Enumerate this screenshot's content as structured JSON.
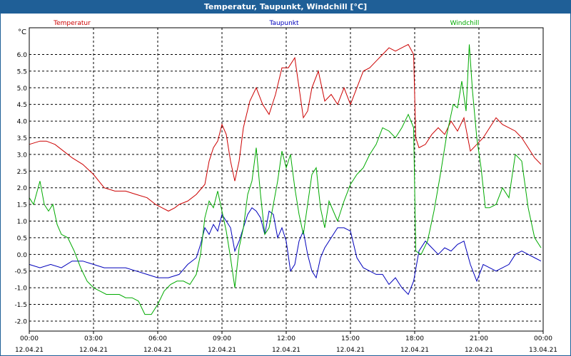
{
  "window": {
    "title": "Temperatur, Taupunkt, Windchill [°C]"
  },
  "chart_data": {
    "type": "line",
    "title": "Temperatur, Taupunkt, Windchill [°C]",
    "ylabel": "°C",
    "xlabel": "",
    "ylim": [
      -2.3,
      6.8
    ],
    "xlim": [
      0,
      24
    ],
    "grid": true,
    "legend": "top",
    "yticks": [
      "-2.0",
      "-1.5",
      "-1.0",
      "-0.5",
      "0.0",
      "0.5",
      "1.0",
      "1.5",
      "2.0",
      "2.5",
      "3.0",
      "3.5",
      "4.0",
      "4.5",
      "5.0",
      "5.5",
      "6.0"
    ],
    "ytick_values": [
      -2.0,
      -1.5,
      -1.0,
      -0.5,
      0.0,
      0.5,
      1.0,
      1.5,
      2.0,
      2.5,
      3.0,
      3.5,
      4.0,
      4.5,
      5.0,
      5.5,
      6.0
    ],
    "xticks": [
      {
        "time": "00:00",
        "date": "12.04.21",
        "hour": 0
      },
      {
        "time": "03:00",
        "date": "12.04.21",
        "hour": 3
      },
      {
        "time": "06:00",
        "date": "12.04.21",
        "hour": 6
      },
      {
        "time": "09:00",
        "date": "12.04.21",
        "hour": 9
      },
      {
        "time": "12:00",
        "date": "12.04.21",
        "hour": 12
      },
      {
        "time": "15:00",
        "date": "12.04.21",
        "hour": 15
      },
      {
        "time": "18:00",
        "date": "12.04.21",
        "hour": 18
      },
      {
        "time": "21:00",
        "date": "12.04.21",
        "hour": 21
      },
      {
        "time": "00:00",
        "date": "13.04.21",
        "hour": 24
      }
    ],
    "series": [
      {
        "name": "Temperatur",
        "color": "#cc0000",
        "x": [
          0,
          0.5,
          0.8,
          1.2,
          1.6,
          2.0,
          2.5,
          3.0,
          3.5,
          4.0,
          4.5,
          5.0,
          5.5,
          5.9,
          6.2,
          6.5,
          6.8,
          7.0,
          7.4,
          7.8,
          8.2,
          8.4,
          8.6,
          8.8,
          9.0,
          9.2,
          9.4,
          9.6,
          9.8,
          10.0,
          10.3,
          10.6,
          10.9,
          11.2,
          11.5,
          11.8,
          12.1,
          12.4,
          12.8,
          13.0,
          13.2,
          13.5,
          13.8,
          14.1,
          14.4,
          14.7,
          15.0,
          15.3,
          15.6,
          15.9,
          16.2,
          16.5,
          16.8,
          17.1,
          17.4,
          17.7,
          17.95,
          18.05,
          18.2,
          18.5,
          18.8,
          19.1,
          19.4,
          19.7,
          20.0,
          20.3,
          20.6,
          20.9,
          21.2,
          21.5,
          21.8,
          22.1,
          22.4,
          22.7,
          23.0,
          23.3,
          23.6,
          23.9
        ],
        "values": [
          3.3,
          3.4,
          3.4,
          3.3,
          3.1,
          2.9,
          2.7,
          2.4,
          2.0,
          1.9,
          1.9,
          1.8,
          1.7,
          1.5,
          1.4,
          1.3,
          1.4,
          1.5,
          1.6,
          1.8,
          2.1,
          2.8,
          3.2,
          3.4,
          3.9,
          3.6,
          2.8,
          2.2,
          2.8,
          3.8,
          4.6,
          5.0,
          4.5,
          4.2,
          4.8,
          5.6,
          5.6,
          5.9,
          4.1,
          4.3,
          5.0,
          5.5,
          4.6,
          4.8,
          4.5,
          5.0,
          4.5,
          5.0,
          5.5,
          5.6,
          5.8,
          6.0,
          6.2,
          6.1,
          6.2,
          6.3,
          6.0,
          3.5,
          3.2,
          3.3,
          3.6,
          3.8,
          3.6,
          4.0,
          3.7,
          4.1,
          3.1,
          3.3,
          3.5,
          3.8,
          4.1,
          3.9,
          3.8,
          3.7,
          3.5,
          3.2,
          2.9,
          2.7
        ]
      },
      {
        "name": "Taupunkt",
        "color": "#0000bb",
        "x": [
          0,
          0.5,
          1.0,
          1.5,
          2.0,
          2.5,
          3.0,
          3.5,
          4.0,
          4.5,
          5.0,
          5.5,
          6.0,
          6.5,
          7.0,
          7.4,
          7.8,
          8.0,
          8.2,
          8.4,
          8.6,
          8.8,
          9.0,
          9.2,
          9.4,
          9.6,
          9.8,
          10.0,
          10.2,
          10.4,
          10.6,
          10.8,
          11.0,
          11.2,
          11.4,
          11.6,
          11.8,
          12.0,
          12.2,
          12.4,
          12.6,
          12.8,
          13.0,
          13.2,
          13.4,
          13.6,
          13.8,
          14.1,
          14.4,
          14.7,
          15.0,
          15.3,
          15.6,
          15.9,
          16.2,
          16.5,
          16.8,
          17.1,
          17.4,
          17.7,
          17.95,
          18.2,
          18.5,
          18.8,
          19.1,
          19.4,
          19.7,
          20.0,
          20.3,
          20.6,
          20.9,
          21.2,
          21.5,
          21.8,
          22.1,
          22.4,
          22.7,
          23.0,
          23.3,
          23.6,
          23.9
        ],
        "values": [
          -0.3,
          -0.4,
          -0.3,
          -0.4,
          -0.2,
          -0.2,
          -0.3,
          -0.4,
          -0.4,
          -0.4,
          -0.5,
          -0.6,
          -0.7,
          -0.7,
          -0.6,
          -0.3,
          -0.1,
          0.3,
          0.8,
          0.6,
          0.9,
          0.7,
          1.2,
          1.0,
          0.8,
          0.1,
          0.4,
          0.8,
          1.2,
          1.4,
          1.3,
          1.1,
          0.6,
          1.3,
          1.2,
          0.5,
          0.8,
          0.4,
          -0.5,
          -0.3,
          0.4,
          0.7,
          0.0,
          -0.5,
          -0.7,
          -0.1,
          0.2,
          0.5,
          0.8,
          0.8,
          0.7,
          -0.1,
          -0.4,
          -0.5,
          -0.6,
          -0.6,
          -0.9,
          -0.7,
          -1.0,
          -1.2,
          -0.8,
          0.1,
          0.4,
          0.2,
          0.0,
          0.2,
          0.1,
          0.3,
          0.4,
          -0.3,
          -0.8,
          -0.3,
          -0.4,
          -0.5,
          -0.4,
          -0.3,
          0.0,
          0.1,
          0.0,
          -0.1,
          -0.2
        ]
      },
      {
        "name": "Windchill",
        "color": "#00aa00",
        "x": [
          0,
          0.2,
          0.5,
          0.7,
          0.9,
          1.1,
          1.3,
          1.5,
          1.8,
          2.1,
          2.4,
          2.7,
          3.0,
          3.3,
          3.6,
          3.9,
          4.2,
          4.5,
          4.8,
          5.1,
          5.4,
          5.7,
          6.0,
          6.3,
          6.6,
          6.9,
          7.2,
          7.5,
          7.8,
          8.0,
          8.2,
          8.4,
          8.6,
          8.8,
          9.0,
          9.2,
          9.4,
          9.6,
          9.8,
          10.0,
          10.2,
          10.4,
          10.6,
          10.8,
          11.0,
          11.2,
          11.4,
          11.6,
          11.8,
          12.0,
          12.2,
          12.4,
          12.6,
          12.8,
          13.0,
          13.2,
          13.4,
          13.6,
          13.8,
          14.0,
          14.2,
          14.4,
          14.7,
          15.0,
          15.3,
          15.6,
          15.9,
          16.2,
          16.5,
          16.8,
          17.1,
          17.4,
          17.7,
          17.95,
          18.05,
          18.3,
          18.6,
          18.9,
          19.2,
          19.5,
          19.8,
          20.0,
          20.2,
          20.4,
          20.55,
          20.7,
          20.9,
          21.1,
          21.3,
          21.5,
          21.8,
          22.1,
          22.4,
          22.7,
          23.0,
          23.3,
          23.6,
          23.9
        ],
        "values": [
          1.7,
          1.5,
          2.2,
          1.5,
          1.3,
          1.5,
          0.9,
          0.6,
          0.5,
          0.1,
          -0.4,
          -0.8,
          -1.0,
          -1.1,
          -1.2,
          -1.2,
          -1.2,
          -1.3,
          -1.3,
          -1.4,
          -1.8,
          -1.8,
          -1.5,
          -1.1,
          -0.9,
          -0.8,
          -0.8,
          -0.9,
          -0.6,
          0.0,
          1.1,
          1.6,
          1.4,
          1.9,
          1.3,
          0.7,
          -0.1,
          -1.0,
          0.2,
          0.8,
          1.8,
          2.2,
          3.2,
          1.8,
          0.6,
          0.8,
          1.5,
          2.2,
          3.1,
          2.6,
          3.0,
          2.0,
          1.2,
          0.6,
          1.5,
          2.4,
          2.6,
          1.4,
          0.8,
          1.6,
          1.3,
          1.0,
          1.6,
          2.1,
          2.4,
          2.6,
          3.0,
          3.3,
          3.8,
          3.7,
          3.5,
          3.8,
          4.2,
          3.8,
          0.1,
          0.0,
          0.4,
          1.3,
          2.4,
          3.6,
          4.5,
          4.4,
          5.2,
          4.3,
          6.3,
          4.9,
          3.5,
          2.6,
          1.4,
          1.4,
          1.5,
          2.0,
          1.7,
          3.0,
          2.8,
          1.4,
          0.5,
          0.2
        ]
      }
    ]
  }
}
